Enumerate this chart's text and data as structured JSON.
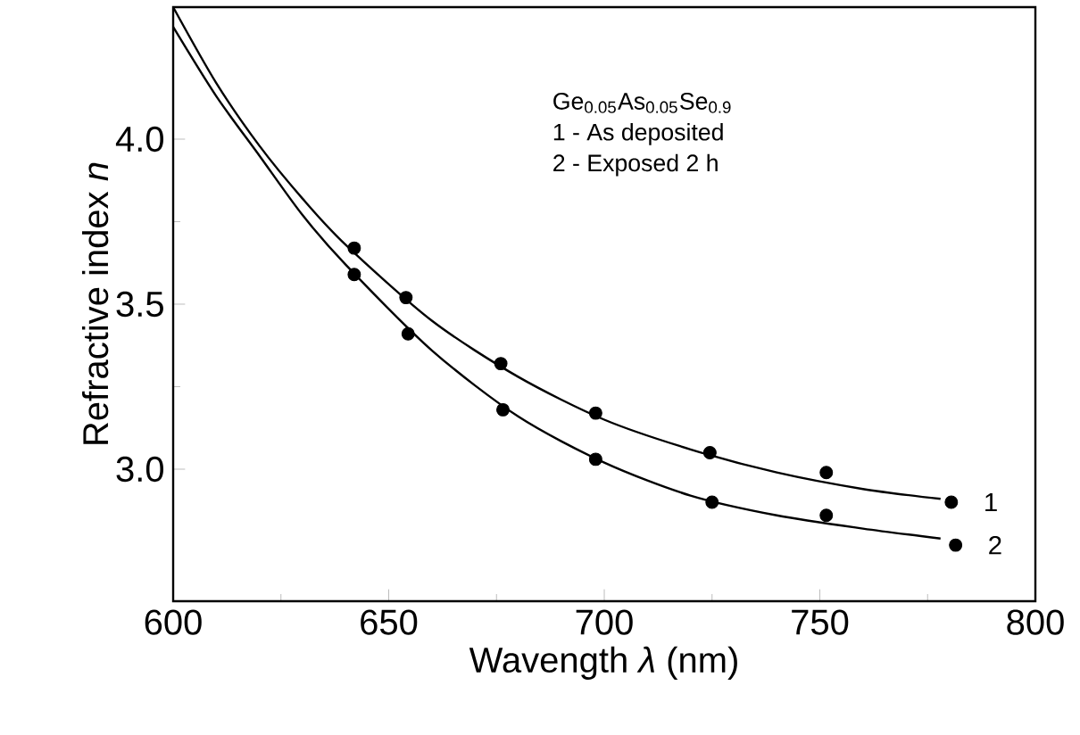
{
  "chart_data": {
    "type": "scatter",
    "xlabel": "Wavength *λ* (nm)",
    "ylabel": "Refractive index *n*",
    "annotations": [
      "Ge$_{0.05}$As$_{0.05}$Se$_{0.9}$",
      "1 - As deposited",
      "2 - Exposed 2 h"
    ],
    "xlim": [
      600,
      800
    ],
    "ylim": [
      2.6,
      4.4
    ],
    "xticks": [
      600,
      650,
      700,
      750,
      800
    ],
    "yticks": [
      {
        "value": 3,
        "label": "3.0"
      },
      3.5,
      {
        "value": 4,
        "label": "4.0"
      }
    ],
    "grid": false,
    "series": [
      {
        "name": "1",
        "marker": "circle",
        "color": "#000000",
        "x": [
          642,
          654,
          676,
          698,
          724.5,
          751.5,
          780.5
        ],
        "values": [
          3.67,
          3.52,
          3.32,
          3.17,
          3.05,
          2.99,
          2.9
        ]
      },
      {
        "name": "2",
        "marker": "circle",
        "color": "#000000",
        "x": [
          642,
          654.5,
          676.5,
          698,
          725,
          751.5,
          781.5
        ],
        "values": [
          3.59,
          3.41,
          3.18,
          3.03,
          2.9,
          2.86,
          2.77
        ]
      },
      {
        "type": "line",
        "marker": "none",
        "color": "#000000",
        "x": [
          600,
          610,
          620,
          630,
          640,
          660,
          680,
          700,
          720,
          740,
          760,
          778
        ],
        "values": [
          4.4,
          4.17,
          3.98,
          3.82,
          3.68,
          3.45,
          3.28,
          3.15,
          3.06,
          2.99,
          2.94,
          2.91
        ]
      },
      {
        "type": "line",
        "marker": "none",
        "color": "#000000",
        "x": [
          600,
          610,
          620,
          630,
          640,
          660,
          680,
          700,
          720,
          740,
          760,
          778
        ],
        "values": [
          4.34,
          4.13,
          3.95,
          3.77,
          3.62,
          3.36,
          3.16,
          3.02,
          2.92,
          2.86,
          2.82,
          2.79
        ]
      }
    ]
  }
}
